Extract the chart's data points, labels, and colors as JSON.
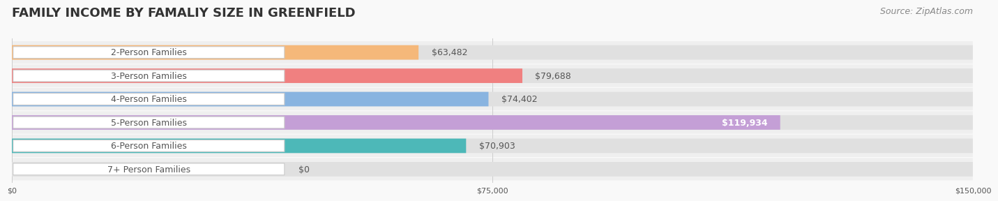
{
  "title": "FAMILY INCOME BY FAMALIY SIZE IN GREENFIELD",
  "source": "Source: ZipAtlas.com",
  "categories": [
    "2-Person Families",
    "3-Person Families",
    "4-Person Families",
    "5-Person Families",
    "6-Person Families",
    "7+ Person Families"
  ],
  "values": [
    63482,
    79688,
    74402,
    119934,
    70903,
    0
  ],
  "bar_colors": [
    "#f5b87a",
    "#f08080",
    "#89b4e0",
    "#c49fd6",
    "#4db8b8",
    "#b8bde8"
  ],
  "bar_bg_color": "#ebebeb",
  "row_bg_colors": [
    "#f5f5f5",
    "#f0f0f0"
  ],
  "xlim": [
    0,
    150000
  ],
  "xticks": [
    0,
    75000,
    150000
  ],
  "xtick_labels": [
    "$0",
    "$75,000",
    "$150,000"
  ],
  "title_fontsize": 13,
  "label_fontsize": 9,
  "value_fontsize": 9,
  "source_fontsize": 9,
  "background_color": "#f9f9f9",
  "title_color": "#333333",
  "label_text_color": "#555555",
  "value_label_color_inside": "#ffffff",
  "value_label_color_outside": "#555555"
}
